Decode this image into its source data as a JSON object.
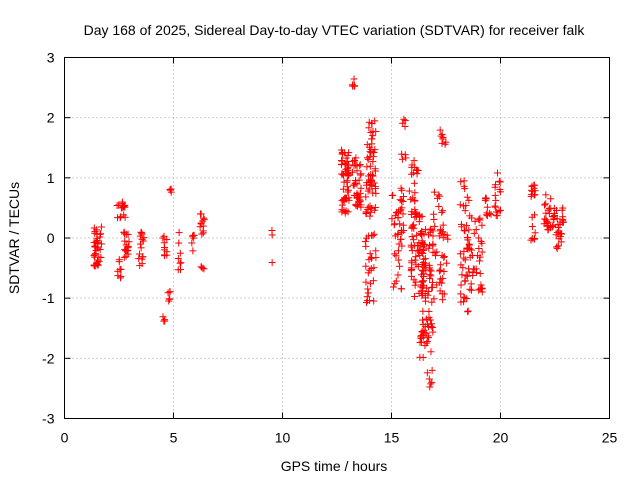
{
  "chart_data": {
    "type": "scatter",
    "title": "Day 168 of 2025, Sidereal Day-to-day VTEC variation (SDTVAR) for receiver falk",
    "xlabel": "GPS time / hours",
    "ylabel": "SDTVAR / TECUs",
    "xlim": [
      0,
      25
    ],
    "ylim": [
      -3,
      3
    ],
    "grid": true,
    "marker": "+",
    "marker_color": "#ff0000",
    "xticks": [
      0,
      5,
      10,
      15,
      20,
      25
    ],
    "yticks": [
      -3,
      -2,
      -1,
      0,
      1,
      2,
      3
    ],
    "xtick_labels": [
      "0",
      "5",
      "10",
      "15",
      "20",
      "25"
    ],
    "ytick_labels": [
      "-3",
      "-2",
      "-1",
      "0",
      "1",
      "2",
      "3"
    ],
    "series": [
      {
        "name": "SDTVAR",
        "clusters": [
          {
            "x": [
              1.35,
              1.7
            ],
            "y": [
              -0.5,
              0.2
            ],
            "n": 40
          },
          {
            "x": [
              2.4,
              2.8
            ],
            "y": [
              0.3,
              0.6
            ],
            "n": 16
          },
          {
            "x": [
              2.4,
              2.6
            ],
            "y": [
              -0.7,
              -0.3
            ],
            "n": 8
          },
          {
            "x": [
              2.7,
              3.0
            ],
            "y": [
              -0.35,
              0.1
            ],
            "n": 18
          },
          {
            "x": [
              3.4,
              3.65
            ],
            "y": [
              -0.5,
              0.1
            ],
            "n": 16
          },
          {
            "x": [
              4.5,
              4.6
            ],
            "y": [
              -1.42,
              -1.25
            ],
            "n": 4
          },
          {
            "x": [
              4.5,
              4.75
            ],
            "y": [
              -0.3,
              0.1
            ],
            "n": 10
          },
          {
            "x": [
              4.75,
              4.9
            ],
            "y": [
              -1.05,
              -0.85
            ],
            "n": 6
          },
          {
            "x": [
              4.8,
              4.92
            ],
            "y": [
              0.75,
              0.85
            ],
            "n": 4
          },
          {
            "x": [
              5.2,
              5.35
            ],
            "y": [
              -0.55,
              0.12
            ],
            "n": 8
          },
          {
            "x": [
              5.8,
              5.95
            ],
            "y": [
              -0.25,
              0.2
            ],
            "n": 6
          },
          {
            "x": [
              6.2,
              6.45
            ],
            "y": [
              0.0,
              0.42
            ],
            "n": 12
          },
          {
            "x": [
              6.25,
              6.4
            ],
            "y": [
              -0.52,
              -0.45
            ],
            "n": 4
          },
          {
            "x": [
              9.5,
              9.6
            ],
            "y": [
              0.05,
              0.15
            ],
            "n": 2
          },
          {
            "x": [
              9.5,
              9.6
            ],
            "y": [
              -0.42,
              -0.38
            ],
            "n": 1
          },
          {
            "x": [
              12.7,
              13.05
            ],
            "y": [
              0.35,
              1.5
            ],
            "n": 55
          },
          {
            "x": [
              13.2,
              13.35
            ],
            "y": [
              2.5,
              2.65
            ],
            "n": 6
          },
          {
            "x": [
              13.2,
              13.6
            ],
            "y": [
              0.45,
              1.35
            ],
            "n": 40
          },
          {
            "x": [
              13.8,
              14.3
            ],
            "y": [
              0.35,
              1.95
            ],
            "n": 60
          },
          {
            "x": [
              13.8,
              14.3
            ],
            "y": [
              -1.1,
              0.1
            ],
            "n": 28
          },
          {
            "x": [
              15.5,
              15.8
            ],
            "y": [
              1.85,
              2.0
            ],
            "n": 4
          },
          {
            "x": [
              15.0,
              15.6
            ],
            "y": [
              -0.85,
              0.9
            ],
            "n": 45
          },
          {
            "x": [
              15.4,
              15.7
            ],
            "y": [
              1.2,
              1.4
            ],
            "n": 4
          },
          {
            "x": [
              15.8,
              16.3
            ],
            "y": [
              0.2,
              1.3
            ],
            "n": 25
          },
          {
            "x": [
              15.9,
              16.5
            ],
            "y": [
              -1.0,
              0.5
            ],
            "n": 60
          },
          {
            "x": [
              16.3,
              16.9
            ],
            "y": [
              -2.0,
              0.2
            ],
            "n": 80
          },
          {
            "x": [
              16.6,
              16.9
            ],
            "y": [
              -2.5,
              -2.2
            ],
            "n": 6
          },
          {
            "x": [
              16.9,
              17.6
            ],
            "y": [
              -1.05,
              0.8
            ],
            "n": 45
          },
          {
            "x": [
              17.2,
              17.5
            ],
            "y": [
              1.55,
              1.8
            ],
            "n": 8
          },
          {
            "x": [
              18.15,
              18.6
            ],
            "y": [
              -1.45,
              1.0
            ],
            "n": 50
          },
          {
            "x": [
              18.6,
              19.2
            ],
            "y": [
              -0.9,
              0.4
            ],
            "n": 35
          },
          {
            "x": [
              19.3,
              19.6
            ],
            "y": [
              0.35,
              0.7
            ],
            "n": 10
          },
          {
            "x": [
              19.7,
              20.0
            ],
            "y": [
              0.3,
              1.1
            ],
            "n": 16
          },
          {
            "x": [
              21.4,
              21.6
            ],
            "y": [
              0.65,
              0.9
            ],
            "n": 12
          },
          {
            "x": [
              21.3,
              21.6
            ],
            "y": [
              -0.1,
              0.4
            ],
            "n": 8
          },
          {
            "x": [
              22.0,
              22.5
            ],
            "y": [
              0.1,
              0.75
            ],
            "n": 30
          },
          {
            "x": [
              22.5,
              22.9
            ],
            "y": [
              -0.2,
              0.5
            ],
            "n": 25
          }
        ]
      }
    ]
  }
}
